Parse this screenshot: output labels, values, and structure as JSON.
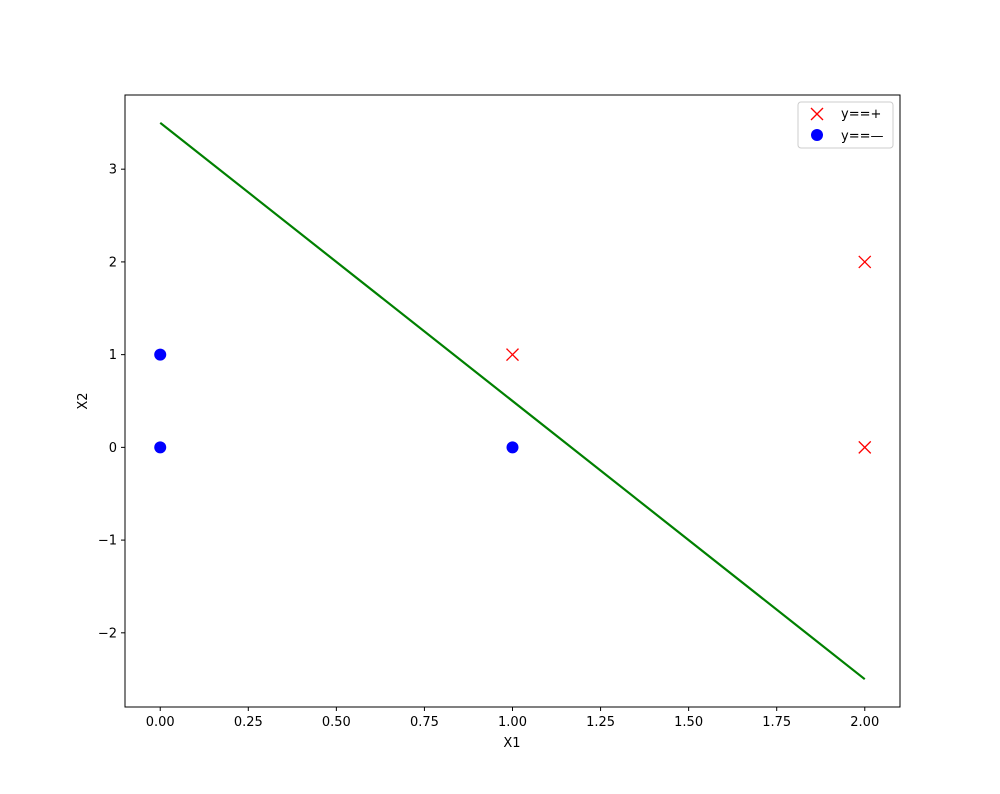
{
  "chart_data": {
    "type": "scatter",
    "xlabel": "X1",
    "ylabel": "X2",
    "xlim": [
      -0.1,
      2.1
    ],
    "ylim": [
      -2.8,
      3.8
    ],
    "x_ticks": [
      0.0,
      0.25,
      0.5,
      0.75,
      1.0,
      1.25,
      1.5,
      1.75,
      2.0
    ],
    "x_tick_labels": [
      "0.00",
      "0.25",
      "0.50",
      "0.75",
      "1.00",
      "1.25",
      "1.50",
      "1.75",
      "2.00"
    ],
    "y_ticks": [
      -2,
      -1,
      0,
      1,
      2,
      3
    ],
    "y_tick_labels": [
      "−2",
      "−1",
      "0",
      "1",
      "2",
      "3"
    ],
    "grid": false,
    "legend_position": "top-right",
    "series": [
      {
        "name": "y==+",
        "marker": "x",
        "color": "#ff0000",
        "points": [
          [
            1,
            1
          ],
          [
            2,
            2
          ],
          [
            2,
            0
          ]
        ]
      },
      {
        "name": "y==—",
        "marker": "circle",
        "color": "#0000ff",
        "points": [
          [
            0,
            1
          ],
          [
            0,
            0
          ],
          [
            1,
            0
          ]
        ]
      }
    ],
    "lines": [
      {
        "color": "#008000",
        "points": [
          [
            0,
            3.5
          ],
          [
            2,
            -2.5
          ]
        ]
      }
    ]
  }
}
